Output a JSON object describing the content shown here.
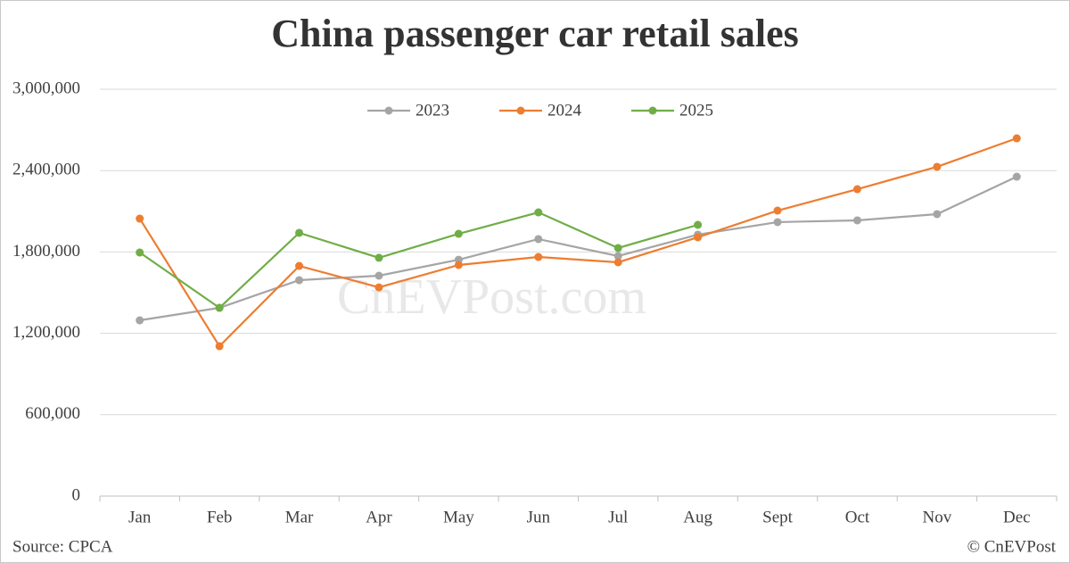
{
  "chart_data": {
    "type": "line",
    "title": "China passenger car retail sales",
    "categories": [
      "Jan",
      "Feb",
      "Mar",
      "Apr",
      "May",
      "Jun",
      "Jul",
      "Aug",
      "Sept",
      "Oct",
      "Nov",
      "Dec"
    ],
    "series": [
      {
        "name": "2023",
        "color": "#a5a5a5",
        "values": [
          1296000,
          1388000,
          1592000,
          1625000,
          1743000,
          1895000,
          1770000,
          1928000,
          2020000,
          2033000,
          2079000,
          2355000
        ]
      },
      {
        "name": "2024",
        "color": "#ed7d31",
        "values": [
          2046000,
          1105000,
          1697000,
          1539000,
          1704000,
          1763000,
          1724000,
          1908000,
          2105000,
          2263000,
          2428000,
          2638000
        ]
      },
      {
        "name": "2025",
        "color": "#70ad47",
        "values": [
          1796000,
          1388000,
          1941000,
          1757000,
          1934000,
          2092000,
          1829000,
          2000000,
          null,
          null,
          null,
          null
        ]
      }
    ],
    "ylim": [
      0,
      3000000
    ],
    "yticks": [
      0,
      {
        "value": 600000,
        "label": "600,000"
      },
      {
        "value": 1200000,
        "label": "1,200,000"
      },
      {
        "value": 1800000,
        "label": "1,800,000"
      },
      {
        "value": 2400000,
        "label": "2,400,000"
      },
      {
        "value": 3000000,
        "label": "3,000,000"
      }
    ],
    "grid": true,
    "legend": "top",
    "source": "Source: CPCA",
    "credit": "© CnEVPost",
    "watermark": "CnEVPost.com"
  }
}
